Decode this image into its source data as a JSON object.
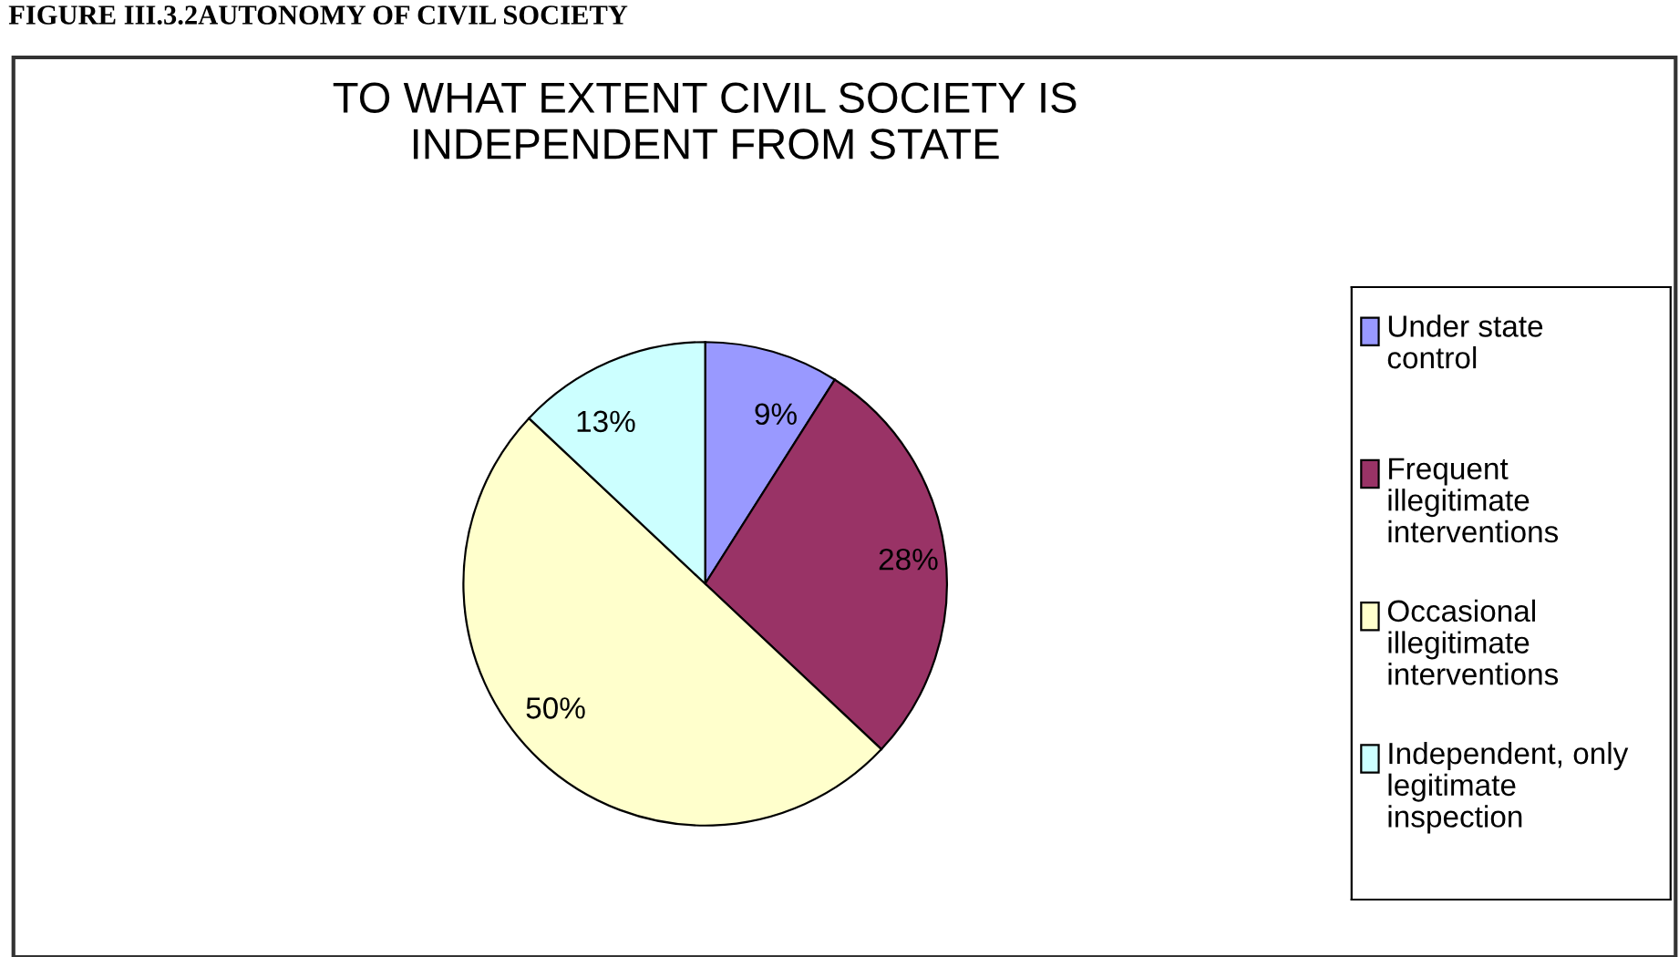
{
  "chart_data": {
    "type": "pie",
    "title": "TO WHAT EXTENT CIVIL SOCIETY IS\nINDEPENDENT FROM STATE",
    "categories": [
      "Under state control",
      "Frequent illegitimate interventions",
      "Occasional illegitimate interventions",
      "Independent, only legitimate inspection"
    ],
    "values": [
      9,
      28,
      50,
      13
    ],
    "colors": [
      "#9999ff",
      "#993366",
      "#ffffcc",
      "#ccffff"
    ],
    "value_labels": [
      "9%",
      "28%",
      "50%",
      "13%"
    ],
    "legend": "right",
    "annotations": [
      "FIGURE III.3.2AUTONOMY OF CIVIL SOCIETY"
    ]
  }
}
